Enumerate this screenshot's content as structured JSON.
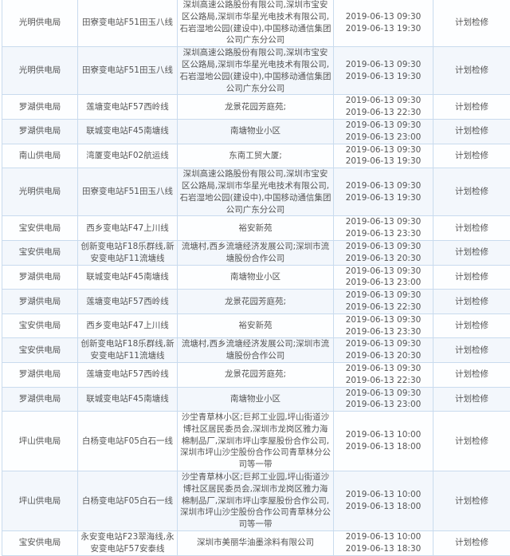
{
  "rows": [
    {
      "bureau": "光明供电局",
      "line": "田寮变电站F51田玉八线",
      "area": "深圳高速公路股份有限公司,深圳市宝安区公路局,深圳市华星光电技术有限公司,石岩湿地公园(建设中),中国移动通信集团公司广东分公司",
      "start": "2019-06-13 09:30",
      "end": "2019-06-13 19:30",
      "type": "计划检修"
    },
    {
      "bureau": "光明供电局",
      "line": "田寮变电站F51田玉八线",
      "area": "深圳高速公路股份有限公司,深圳市宝安区公路局,深圳市华星光电技术有限公司,石岩湿地公园(建设中),中国移动通信集团公司广东分公司",
      "start": "2019-06-13 09:30",
      "end": "2019-06-13 19:30",
      "type": "计划检修"
    },
    {
      "bureau": "罗湖供电局",
      "line": "莲塘变电站F57西岭线",
      "area": "龙景花园芳庭苑;",
      "start": "2019-06-13 09:30",
      "end": "2019-06-13 22:30",
      "type": "计划检修"
    },
    {
      "bureau": "罗湖供电局",
      "line": "联城变电站F45南塘线",
      "area": "南塘物业小区",
      "start": "2019-06-13 09:30",
      "end": "2019-06-13 23:00",
      "type": "计划检修"
    },
    {
      "bureau": "南山供电局",
      "line": "湾厦变电站F02航运线",
      "area": "东南工贸大厦;",
      "start": "2019-06-13 09:30",
      "end": "2019-06-13 19:30",
      "type": "计划检修"
    },
    {
      "bureau": "光明供电局",
      "line": "田寮变电站F51田玉八线",
      "area": "深圳高速公路股份有限公司,深圳市宝安区公路局,深圳市华星光电技术有限公司,石岩湿地公园(建设中),中国移动通信集团公司广东分公司",
      "start": "2019-06-13 09:30",
      "end": "2019-06-13 19:30",
      "type": "计划检修"
    },
    {
      "bureau": "宝安供电局",
      "line": "西乡变电站F47上川线",
      "area": "裕安新苑",
      "start": "2019-06-13 09:30",
      "end": "2019-06-13 23:30",
      "type": "计划检修"
    },
    {
      "bureau": "宝安供电局",
      "line": "创新变电站F18乐群线,新安变电站F11流塘线",
      "area": "流塘村,西乡流塘经济发展公司;深圳市流塘股份合作公司",
      "start": "2019-06-13 09:30",
      "end": "2019-06-13 20:30",
      "type": "计划检修"
    },
    {
      "bureau": "罗湖供电局",
      "line": "联城变电站F45南塘线",
      "area": "南塘物业小区",
      "start": "2019-06-13 09:30",
      "end": "2019-06-13 23:00",
      "type": "计划检修"
    },
    {
      "bureau": "罗湖供电局",
      "line": "莲塘变电站F57西岭线",
      "area": "龙景花园芳庭苑;",
      "start": "2019-06-13 09:30",
      "end": "2019-06-13 22:30",
      "type": "计划检修"
    },
    {
      "bureau": "宝安供电局",
      "line": "西乡变电站F47上川线",
      "area": "裕安新苑",
      "start": "2019-06-13 09:30",
      "end": "2019-06-13 23:30",
      "type": "计划检修"
    },
    {
      "bureau": "宝安供电局",
      "line": "创新变电站F18乐群线,新安变电站F11流塘线",
      "area": "流塘村,西乡流塘经济发展公司;深圳市流塘股份合作公司",
      "start": "2019-06-13 09:30",
      "end": "2019-06-13 20:30",
      "type": "计划检修"
    },
    {
      "bureau": "罗湖供电局",
      "line": "莲塘变电站F57西岭线",
      "area": "龙景花园芳庭苑;",
      "start": "2019-06-13 09:30",
      "end": "2019-06-13 22:30",
      "type": "计划检修"
    },
    {
      "bureau": "罗湖供电局",
      "line": "联城变电站F45南塘线",
      "area": "南塘物业小区",
      "start": "2019-06-13 09:30",
      "end": "2019-06-13 23:00",
      "type": "计划检修"
    },
    {
      "bureau": "坪山供电局",
      "line": "白杨变电站F05白石一线",
      "area": "沙坣青草林小区;巨邦工业园,坪山街道沙博社区居民委员会,深圳市龙岗区雅力海棉制品厂,深圳市坪山李屋股份合作公司,深圳市坪山沙坣股份合作公司青草林分公司等一带",
      "start": "2019-06-13 10:00",
      "end": "2019-06-13 18:00",
      "type": "计划检修"
    },
    {
      "bureau": "坪山供电局",
      "line": "白杨变电站F05白石一线",
      "area": "沙坣青草林小区;巨邦工业园,坪山街道沙博社区居民委员会,深圳市龙岗区雅力海棉制品厂,深圳市坪山李屋股份合作公司,深圳市坪山沙坣股份合作公司青草林分公司等一带",
      "start": "2019-06-13 10:00",
      "end": "2019-06-13 18:00",
      "type": "计划检修"
    },
    {
      "bureau": "宝安供电局",
      "line": "永安变电站F23翠海线,永安变电站F57安泰线",
      "area": "深圳市美丽华油墨涂料有限公司",
      "start": "2019-06-13 10:00",
      "end": "2019-06-13 18:30",
      "type": "计划检修"
    }
  ]
}
